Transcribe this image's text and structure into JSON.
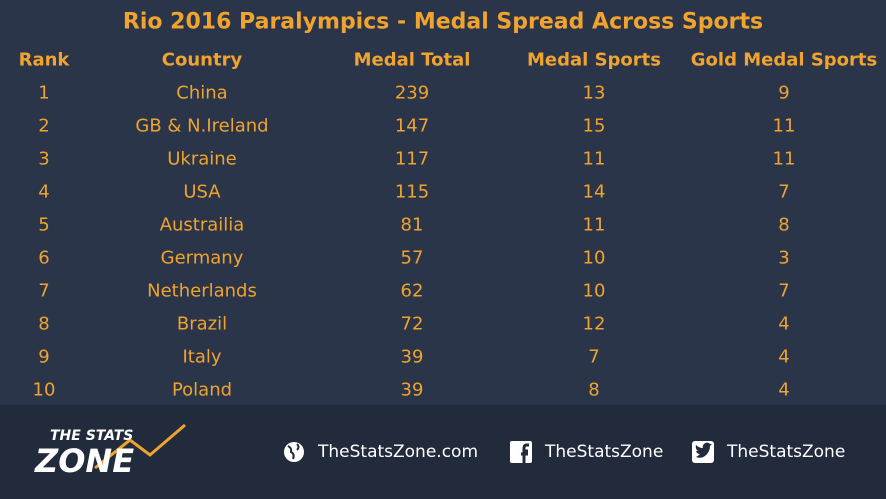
{
  "header": {
    "title": "Rio 2016 Paralympics - Medal Spread Across Sports"
  },
  "table": {
    "columns": [
      "Rank",
      "Country",
      "Medal Total",
      "Medal Sports",
      "Gold Medal Sports"
    ],
    "rows": [
      [
        1,
        "China",
        239,
        13,
        9
      ],
      [
        2,
        "GB & N.Ireland",
        147,
        15,
        11
      ],
      [
        3,
        "Ukraine",
        117,
        11,
        11
      ],
      [
        4,
        "USA",
        115,
        14,
        7
      ],
      [
        5,
        "Austrailia",
        81,
        11,
        8
      ],
      [
        6,
        "Germany",
        57,
        10,
        3
      ],
      [
        7,
        "Netherlands",
        62,
        10,
        7
      ],
      [
        8,
        "Brazil",
        72,
        12,
        4
      ],
      [
        9,
        "Italy",
        39,
        7,
        4
      ],
      [
        10,
        "Poland",
        39,
        8,
        4
      ]
    ]
  },
  "footer": {
    "logo": {
      "line1": "THE STATS",
      "line2": "ZONE"
    },
    "website": "TheStatsZone.com",
    "facebook": "TheStatsZone",
    "twitter": "TheStatsZone"
  }
}
